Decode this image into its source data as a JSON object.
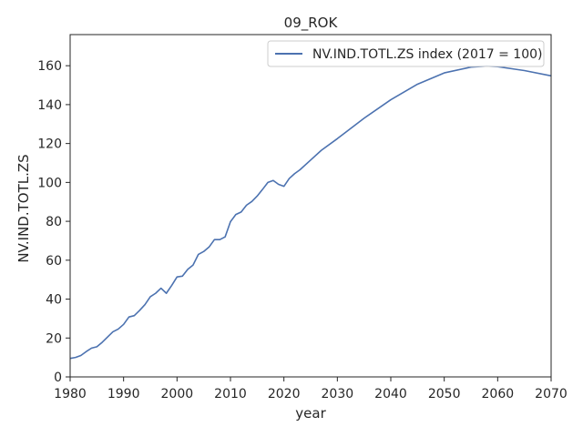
{
  "chart_data": {
    "type": "line",
    "title": "09_ROK",
    "xlabel": "year",
    "ylabel": "NV.IND.TOTL.ZS",
    "xlim": [
      1980,
      2070
    ],
    "ylim": [
      0,
      176
    ],
    "x_ticks": [
      1980,
      1990,
      2000,
      2010,
      2020,
      2030,
      2040,
      2050,
      2060,
      2070
    ],
    "y_ticks": [
      0,
      20,
      40,
      60,
      80,
      100,
      120,
      140,
      160
    ],
    "grid": false,
    "legend_position": "top-right",
    "series": [
      {
        "name": "NV.IND.TOTL.ZS index (2017 = 100)",
        "color": "#4c72b0",
        "points": [
          [
            1980,
            9.5
          ],
          [
            1981,
            10
          ],
          [
            1982,
            11
          ],
          [
            1983,
            13
          ],
          [
            1984,
            14.8
          ],
          [
            1985,
            15.5
          ],
          [
            1986,
            17.8
          ],
          [
            1987,
            20.5
          ],
          [
            1988,
            23.2
          ],
          [
            1989,
            24.6
          ],
          [
            1990,
            27
          ],
          [
            1991,
            30.8
          ],
          [
            1992,
            31.5
          ],
          [
            1993,
            34.2
          ],
          [
            1994,
            37.2
          ],
          [
            1995,
            41.2
          ],
          [
            1996,
            43
          ],
          [
            1997,
            45.6
          ],
          [
            1998,
            43
          ],
          [
            1999,
            47
          ],
          [
            2000,
            51.4
          ],
          [
            2001,
            51.8
          ],
          [
            2002,
            55.3
          ],
          [
            2003,
            57.5
          ],
          [
            2004,
            63
          ],
          [
            2005,
            64.5
          ],
          [
            2006,
            66.8
          ],
          [
            2007,
            70.6
          ],
          [
            2008,
            70.6
          ],
          [
            2009,
            72
          ],
          [
            2010,
            79.8
          ],
          [
            2011,
            83.5
          ],
          [
            2012,
            84.8
          ],
          [
            2013,
            88.3
          ],
          [
            2014,
            90.2
          ],
          [
            2015,
            93
          ],
          [
            2016,
            96.4
          ],
          [
            2017,
            100
          ],
          [
            2018,
            101
          ],
          [
            2019,
            99
          ],
          [
            2020,
            98
          ],
          [
            2021,
            102
          ],
          [
            2022,
            104.5
          ],
          [
            2023,
            106.5
          ],
          [
            2025,
            111.5
          ],
          [
            2027,
            116.5
          ],
          [
            2030,
            122.5
          ],
          [
            2035,
            133
          ],
          [
            2040,
            142.5
          ],
          [
            2045,
            150.5
          ],
          [
            2050,
            156.3
          ],
          [
            2055,
            159.3
          ],
          [
            2058,
            159.8
          ],
          [
            2060,
            159.5
          ],
          [
            2065,
            157.5
          ],
          [
            2070,
            154.8
          ]
        ]
      }
    ]
  }
}
